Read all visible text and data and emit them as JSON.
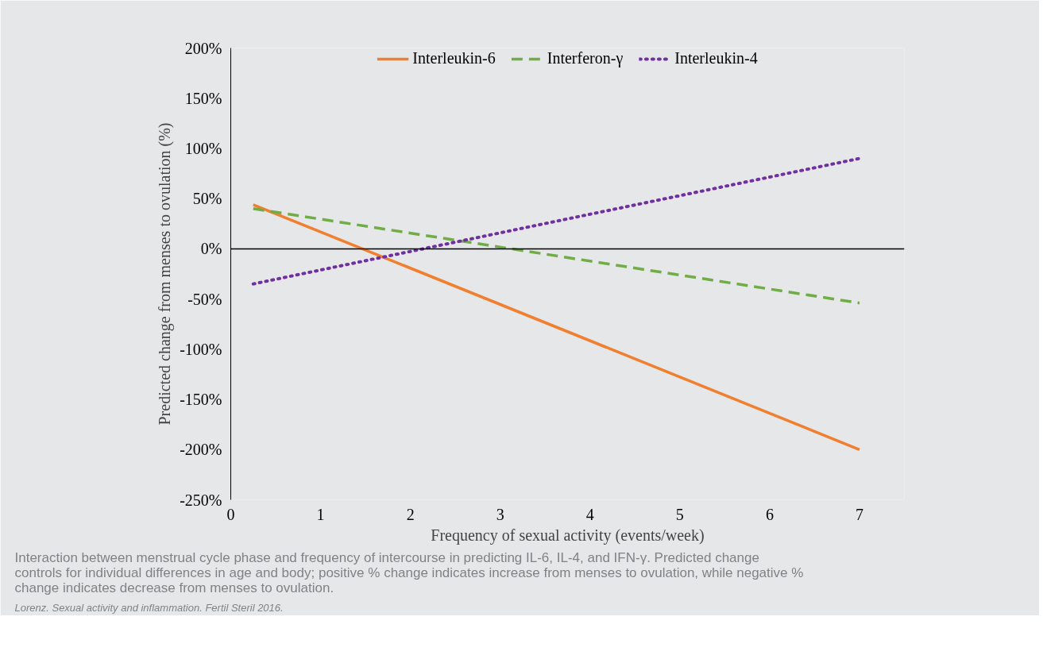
{
  "chart_data": {
    "type": "line",
    "xlabel": "Frequency of sexual activity (events/week)",
    "ylabel": "Predicted change from menses to ovulation (%)",
    "xlim": [
      0,
      7.5
    ],
    "xticks": [
      0,
      1,
      2,
      3,
      4,
      5,
      6,
      7
    ],
    "ylim": [
      -250,
      200
    ],
    "yticks": [
      {
        "value": -250,
        "label": "-250%"
      },
      {
        "value": -200,
        "label": "-200%"
      },
      {
        "value": -150,
        "label": "-150%"
      },
      {
        "value": -100,
        "label": "-100%"
      },
      {
        "value": -50,
        "label": "-50%"
      },
      {
        "value": 0,
        "label": "0%"
      },
      {
        "value": 50,
        "label": "50%"
      },
      {
        "value": 100,
        "label": "100%"
      },
      {
        "value": 150,
        "label": "150%"
      },
      {
        "value": 200,
        "label": "200%"
      }
    ],
    "x": [
      0.25,
      7
    ],
    "series": [
      {
        "name": "Interleukin-6",
        "color": "#f07f2f",
        "values": [
          44,
          -200
        ],
        "line_style": "solid"
      },
      {
        "name": "Interferon-γ",
        "color": "#70ad47",
        "values": [
          40,
          -54
        ],
        "line_style": "dashed"
      },
      {
        "name": "Interleukin-4",
        "color": "#7030a0",
        "values": [
          -35,
          90
        ],
        "line_style": "dotted"
      }
    ],
    "ref_lines": [
      {
        "axis": "y",
        "value": 0,
        "color": "#000000"
      }
    ],
    "grid": false,
    "legend": "top",
    "marker": "none",
    "annotations": [
      "Interaction between menstrual cycle phase and frequency of intercourse in predicting IL-6, IL-4, and IFN-γ. Predicted change controls for individual differences in age and body; positive % change indicates increase from menses to ovulation, while negative % change indicates decrease from menses to ovulation.",
      "Lorenz. Sexual activity and inflammation. Fertil Steril 2016."
    ]
  }
}
